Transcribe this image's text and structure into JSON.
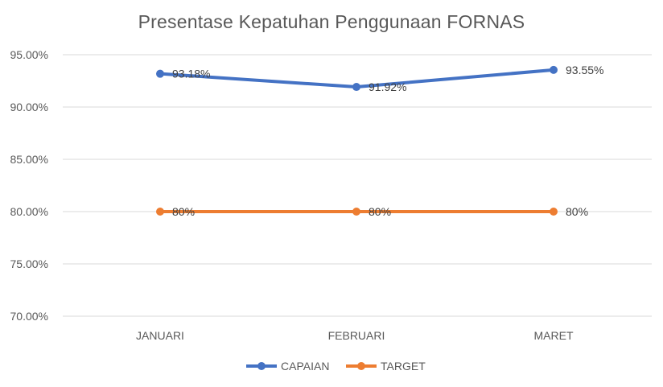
{
  "chart_data": {
    "type": "line",
    "title": "Presentase Kepatuhan Penggunaan FORNAS",
    "categories": [
      "JANUARI",
      "FEBRUARI",
      "MARET"
    ],
    "ylim": [
      70,
      95
    ],
    "yticks": [
      95,
      90,
      85,
      80,
      75,
      70
    ],
    "ytick_labels": [
      "95.00%",
      "90.00%",
      "85.00%",
      "80.00%",
      "75.00%",
      "70.00%"
    ],
    "grid": true,
    "legend_position": "bottom",
    "series": [
      {
        "name": "CAPAIAN",
        "color": "#4472C4",
        "values": [
          93.18,
          91.92,
          93.55
        ],
        "labels": [
          "93.18%",
          "91.92%",
          "93.55%"
        ]
      },
      {
        "name": "TARGET",
        "color": "#ED7D31",
        "values": [
          80,
          80,
          80
        ],
        "labels": [
          "80%",
          "80%",
          "80%"
        ]
      }
    ]
  }
}
